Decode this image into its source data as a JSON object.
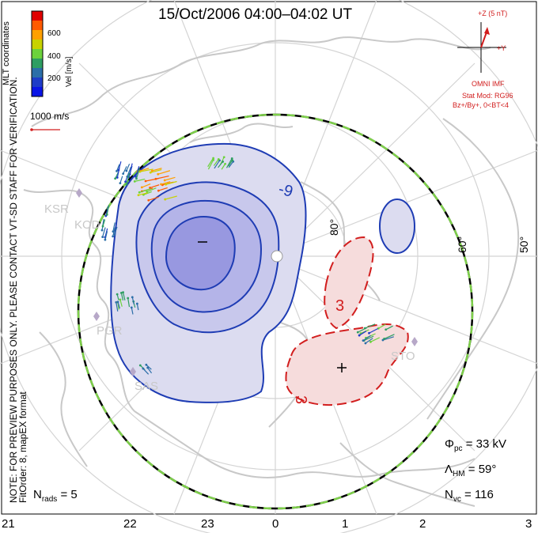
{
  "title": "15/Oct/2006 04:00–04:02 UT",
  "side_notes": {
    "mlt_coords": "MLT coordinates",
    "preview": "NOTE: FOR PREVIEW PURPOSES ONLY. PLEASE CONTACT VT-SD STAFF FOR VERIFICATION.",
    "fit": "FitOrder: 8, mapEX format"
  },
  "velocity_legend": {
    "label": "Vel [m/s]",
    "ticks": [
      "600",
      "400",
      "200"
    ],
    "colors": [
      "#e00000",
      "#ff5a00",
      "#ffa000",
      "#c8d200",
      "#6cd23c",
      "#2e9e62",
      "#2b6ea8",
      "#1e3cc8",
      "#0a14e6"
    ]
  },
  "scale": {
    "label": "1000 m/s",
    "color": "#d21e1e"
  },
  "imf": {
    "z_label": "+Z (5 nT)",
    "y_label": "+Y",
    "source": "OMNI IMF",
    "model": "Stat Mod: RG96",
    "conditions": "Bz+/By+, 0<BT<4"
  },
  "latitude_labels": [
    "80°",
    "60°",
    "50°"
  ],
  "stations": [
    "KSR",
    "KOD",
    "PGR",
    "SAS",
    "STO"
  ],
  "contours": {
    "negative": "-9",
    "positive": "3",
    "positive2": "3"
  },
  "stats": {
    "phi": "Φ",
    "phi_sub": "pc",
    "phi_value": " = 33 kV",
    "lambda": "Λ",
    "lambda_sub": "HM",
    "lambda_value": " = 59°",
    "nvc": "N",
    "nvc_sub": "vc",
    "nvc_value": " = 116",
    "nrads": "N",
    "nrads_sub": "rads",
    "nrads_value": " = 5"
  },
  "mlt_labels": [
    "21",
    "22",
    "23",
    "0",
    "1",
    "2",
    "3"
  ],
  "colors": {
    "negative_fill": "#dcdcf0",
    "negative_line": "#1e3cb4",
    "positive_fill": "#f6dcdc",
    "positive_line": "#d21e1e",
    "coast": "#c8c8c8",
    "grid": "#d4d4d4",
    "boundary_green": "#7ed04a"
  }
}
